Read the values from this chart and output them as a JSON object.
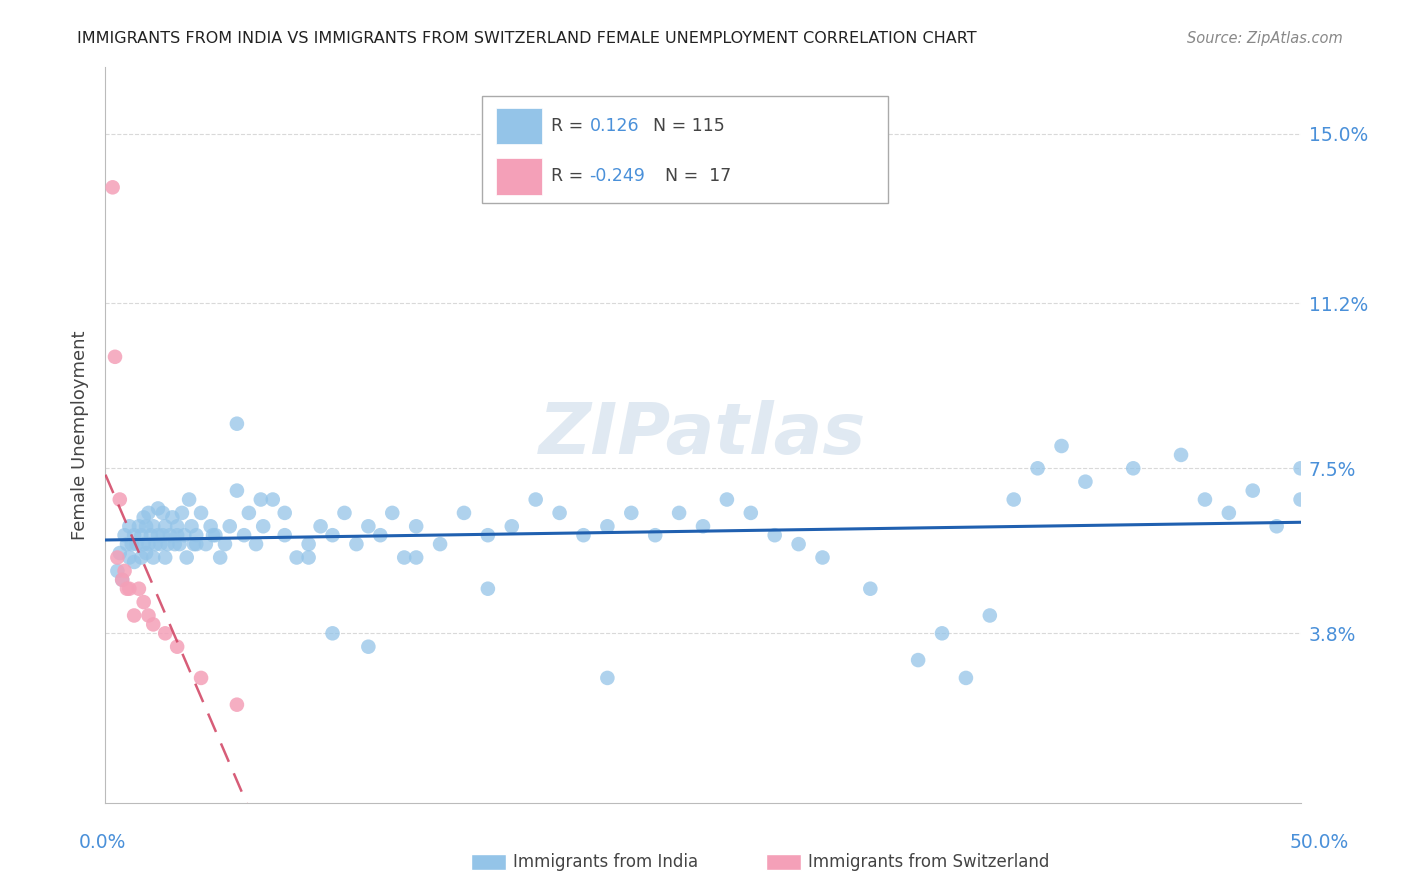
{
  "title": "IMMIGRANTS FROM INDIA VS IMMIGRANTS FROM SWITZERLAND FEMALE UNEMPLOYMENT CORRELATION CHART",
  "source": "Source: ZipAtlas.com",
  "ylabel": "Female Unemployment",
  "xlim": [
    0.0,
    0.5
  ],
  "ylim": [
    0.0,
    0.165
  ],
  "ytick_vals": [
    0.038,
    0.075,
    0.112,
    0.15
  ],
  "ytick_labels": [
    "3.8%",
    "7.5%",
    "11.2%",
    "15.0%"
  ],
  "india_color": "#94c4e8",
  "switzerland_color": "#f4a0b8",
  "india_line_color": "#2060b0",
  "switzerland_line_color": "#d04060",
  "grid_color": "#d0d0d0",
  "axis_label_color": "#4a90d9",
  "india_x": [
    0.005,
    0.006,
    0.007,
    0.008,
    0.009,
    0.01,
    0.01,
    0.011,
    0.012,
    0.012,
    0.013,
    0.014,
    0.015,
    0.015,
    0.016,
    0.016,
    0.017,
    0.017,
    0.018,
    0.018,
    0.019,
    0.02,
    0.02,
    0.021,
    0.022,
    0.022,
    0.023,
    0.024,
    0.024,
    0.025,
    0.025,
    0.026,
    0.027,
    0.028,
    0.029,
    0.03,
    0.03,
    0.031,
    0.032,
    0.033,
    0.034,
    0.035,
    0.036,
    0.037,
    0.038,
    0.04,
    0.042,
    0.044,
    0.046,
    0.048,
    0.05,
    0.052,
    0.055,
    0.058,
    0.06,
    0.063,
    0.066,
    0.07,
    0.075,
    0.08,
    0.085,
    0.09,
    0.095,
    0.1,
    0.105,
    0.11,
    0.115,
    0.12,
    0.125,
    0.13,
    0.14,
    0.15,
    0.16,
    0.17,
    0.18,
    0.19,
    0.2,
    0.21,
    0.22,
    0.23,
    0.24,
    0.25,
    0.26,
    0.27,
    0.28,
    0.29,
    0.3,
    0.32,
    0.34,
    0.35,
    0.36,
    0.37,
    0.38,
    0.39,
    0.4,
    0.41,
    0.43,
    0.45,
    0.46,
    0.47,
    0.48,
    0.49,
    0.5,
    0.5,
    0.038,
    0.045,
    0.055,
    0.065,
    0.075,
    0.085,
    0.095,
    0.11,
    0.13,
    0.16,
    0.21
  ],
  "india_y": [
    0.052,
    0.056,
    0.05,
    0.06,
    0.058,
    0.055,
    0.062,
    0.058,
    0.054,
    0.06,
    0.058,
    0.062,
    0.055,
    0.06,
    0.058,
    0.064,
    0.056,
    0.062,
    0.058,
    0.065,
    0.06,
    0.055,
    0.062,
    0.058,
    0.06,
    0.066,
    0.058,
    0.06,
    0.065,
    0.055,
    0.062,
    0.058,
    0.06,
    0.064,
    0.058,
    0.06,
    0.062,
    0.058,
    0.065,
    0.06,
    0.055,
    0.068,
    0.062,
    0.058,
    0.06,
    0.065,
    0.058,
    0.062,
    0.06,
    0.055,
    0.058,
    0.062,
    0.085,
    0.06,
    0.065,
    0.058,
    0.062,
    0.068,
    0.06,
    0.055,
    0.058,
    0.062,
    0.06,
    0.065,
    0.058,
    0.062,
    0.06,
    0.065,
    0.055,
    0.062,
    0.058,
    0.065,
    0.06,
    0.062,
    0.068,
    0.065,
    0.06,
    0.062,
    0.065,
    0.06,
    0.065,
    0.062,
    0.068,
    0.065,
    0.06,
    0.058,
    0.055,
    0.048,
    0.032,
    0.038,
    0.028,
    0.042,
    0.068,
    0.075,
    0.08,
    0.072,
    0.075,
    0.078,
    0.068,
    0.065,
    0.07,
    0.062,
    0.068,
    0.075,
    0.058,
    0.06,
    0.07,
    0.068,
    0.065,
    0.055,
    0.038,
    0.035,
    0.055,
    0.048,
    0.028
  ],
  "switzerland_x": [
    0.003,
    0.004,
    0.005,
    0.006,
    0.007,
    0.008,
    0.009,
    0.01,
    0.012,
    0.014,
    0.016,
    0.018,
    0.02,
    0.025,
    0.03,
    0.04,
    0.055
  ],
  "switzerland_y": [
    0.138,
    0.1,
    0.055,
    0.068,
    0.05,
    0.052,
    0.048,
    0.048,
    0.042,
    0.048,
    0.045,
    0.042,
    0.04,
    0.038,
    0.035,
    0.028,
    0.022
  ],
  "legend_R_india": "R =  0.126",
  "legend_N_india": "N = 115",
  "legend_R_swiss": "R = -0.249",
  "legend_N_swiss": "N =  17",
  "bottom_label_india": "Immigrants from India",
  "bottom_label_swiss": "Immigrants from Switzerland"
}
